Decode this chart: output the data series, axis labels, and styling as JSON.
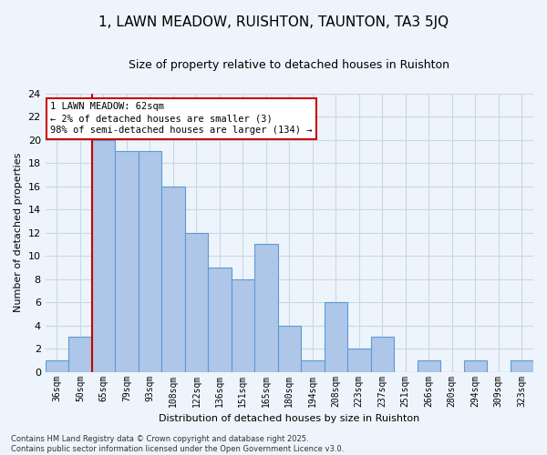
{
  "title": "1, LAWN MEADOW, RUISHTON, TAUNTON, TA3 5JQ",
  "subtitle": "Size of property relative to detached houses in Ruishton",
  "xlabel": "Distribution of detached houses by size in Ruishton",
  "ylabel": "Number of detached properties",
  "footer": "Contains HM Land Registry data © Crown copyright and database right 2025.\nContains public sector information licensed under the Open Government Licence v3.0.",
  "categories": [
    "36sqm",
    "50sqm",
    "65sqm",
    "79sqm",
    "93sqm",
    "108sqm",
    "122sqm",
    "136sqm",
    "151sqm",
    "165sqm",
    "180sqm",
    "194sqm",
    "208sqm",
    "223sqm",
    "237sqm",
    "251sqm",
    "266sqm",
    "280sqm",
    "294sqm",
    "309sqm",
    "323sqm"
  ],
  "values": [
    1,
    3,
    20,
    19,
    19,
    16,
    12,
    9,
    8,
    11,
    4,
    1,
    6,
    2,
    3,
    0,
    1,
    0,
    1,
    0,
    1
  ],
  "bar_color": "#aec6e8",
  "bar_edge_color": "#5b9bd5",
  "grid_color": "#c8d8e8",
  "bg_color": "#eef4fb",
  "annotation_text": "1 LAWN MEADOW: 62sqm\n← 2% of detached houses are smaller (3)\n98% of semi-detached houses are larger (134) →",
  "annotation_box_color": "#ffffff",
  "annotation_border_color": "#cc0000",
  "red_line_x": 1.5,
  "ylim": [
    0,
    24
  ],
  "yticks": [
    0,
    2,
    4,
    6,
    8,
    10,
    12,
    14,
    16,
    18,
    20,
    22,
    24
  ],
  "title_fontsize": 11,
  "subtitle_fontsize": 9,
  "bar_fontsize": 7,
  "ylabel_fontsize": 8,
  "xlabel_fontsize": 8,
  "footer_fontsize": 6
}
